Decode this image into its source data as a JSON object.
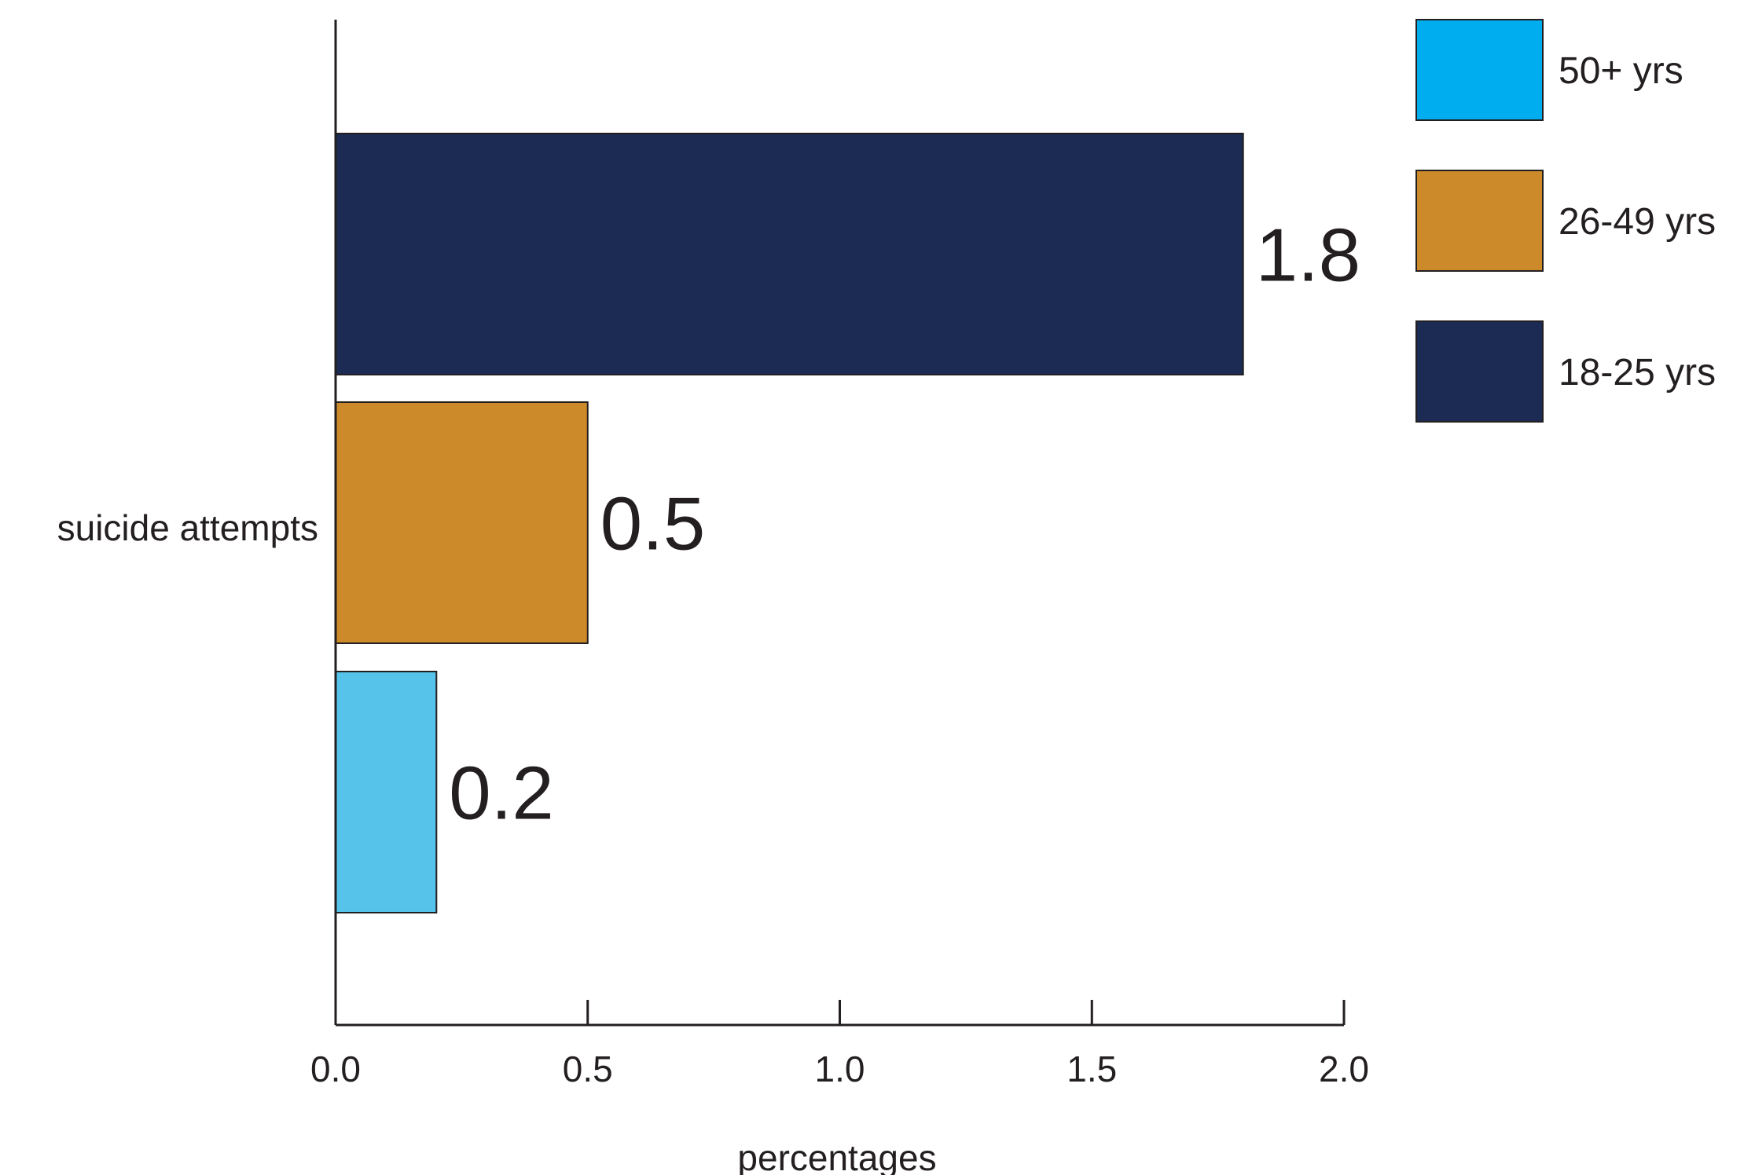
{
  "chart_data": {
    "type": "bar",
    "orientation": "horizontal",
    "categories": [
      "suicide attempts"
    ],
    "series": [
      {
        "name": "18-25 yrs",
        "values": [
          1.8
        ],
        "color": "#1b2b54"
      },
      {
        "name": "26-49 yrs",
        "values": [
          0.5
        ],
        "color": "#cc8a2b"
      },
      {
        "name": "50+ yrs",
        "values": [
          0.2
        ],
        "color": "#55c3ea"
      }
    ],
    "data_labels": [
      "1.8",
      "0.5",
      "0.2"
    ],
    "xlabel": "percentages",
    "ylabel": "",
    "xlim": [
      0,
      2.0
    ],
    "xticks": [
      0.0,
      0.5,
      1.0,
      1.5,
      2.0
    ],
    "xtick_labels": [
      "0.0",
      "0.5",
      "1.0",
      "1.5",
      "2.0"
    ],
    "grid": false,
    "legend": {
      "placement": "top-right",
      "items": [
        {
          "label": "50+ yrs",
          "color": "#00aeef"
        },
        {
          "label": "26-49 yrs",
          "color": "#cc8a2b"
        },
        {
          "label": "18-25 yrs",
          "color": "#1b2b54"
        }
      ]
    }
  }
}
